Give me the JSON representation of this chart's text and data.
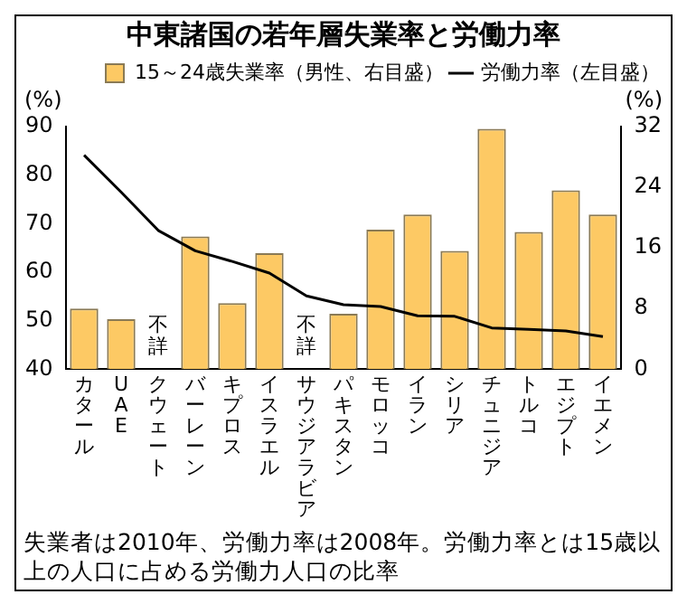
{
  "chart_data": {
    "type": "bar",
    "title": "中東諸国の若年層失業率と労働力率",
    "ylabel": "(%)",
    "y2label": "(%)",
    "categories": [
      "カタール",
      "UAE",
      "クウェート",
      "バーレーン",
      "キプロス",
      "イスラエル",
      "サウジアラビア",
      "パキスタン",
      "モロッコ",
      "イラン",
      "シリア",
      "チュニジア",
      "トルコ",
      "エジプト",
      "イエメン"
    ],
    "series": [
      {
        "name": "15～24歳失業率（男性、右目盛）",
        "axis": "y2",
        "color": "#fdc964",
        "values": [
          8.0,
          6.6,
          null,
          17.5,
          8.7,
          15.3,
          null,
          7.3,
          18.4,
          20.4,
          15.6,
          31.7,
          18.1,
          23.6,
          20.4
        ]
      },
      {
        "name": "労働力率（左目盛）",
        "type": "line",
        "color": "#000000",
        "values": [
          84.1,
          76.5,
          68.6,
          64.4,
          62.2,
          59.8,
          55.1,
          53.3,
          52.9,
          51.0,
          50.9,
          48.5,
          48.2,
          47.9,
          46.7
        ]
      }
    ],
    "ylim": [
      40,
      90
    ],
    "yticks": [
      40,
      50,
      60,
      70,
      80,
      90
    ],
    "y2lim": [
      0,
      32
    ],
    "y2ticks": [
      0,
      8,
      16,
      24,
      32
    ],
    "annotations": [
      "不詳",
      "不詳",
      "失業者は2010年、労働力率は2008年。労働力率とは15歳以上の人口に占める労働力人口の比率"
    ],
    "grid": false,
    "legend": "top",
    "marker": "none"
  }
}
